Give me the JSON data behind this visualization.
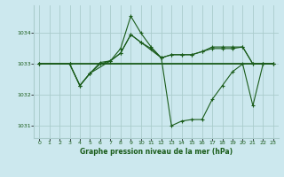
{
  "bg_color": "#cce8ee",
  "grid_color": "#aacccc",
  "line_color": "#1a5c1a",
  "title": "Graphe pression niveau de la mer (hPa)",
  "xlim": [
    -0.5,
    23.5
  ],
  "ylim": [
    1030.6,
    1034.9
  ],
  "yticks": [
    1031,
    1032,
    1033,
    1034
  ],
  "xticks": [
    0,
    1,
    2,
    3,
    4,
    5,
    6,
    7,
    8,
    9,
    10,
    11,
    12,
    13,
    14,
    15,
    16,
    17,
    18,
    19,
    20,
    21,
    22,
    23
  ],
  "series_flat": {
    "x": [
      0,
      23
    ],
    "y": [
      1033.0,
      1033.0
    ]
  },
  "series_slow": {
    "x": [
      0,
      3,
      4,
      5,
      6,
      7,
      8,
      9,
      10,
      12,
      13,
      14,
      15,
      16,
      17,
      18,
      19,
      20,
      21,
      22,
      23
    ],
    "y": [
      1033.0,
      1033.0,
      1032.3,
      1032.7,
      1033.0,
      1033.1,
      1033.35,
      1033.95,
      1033.7,
      1033.2,
      1033.3,
      1033.3,
      1033.3,
      1033.4,
      1033.5,
      1033.5,
      1033.5,
      1033.55,
      1033.0,
      1033.0,
      1033.0
    ]
  },
  "series_main": {
    "x": [
      0,
      3,
      4,
      5,
      6,
      7,
      8,
      9,
      10,
      11,
      12,
      13,
      14,
      15,
      16,
      17,
      18,
      19,
      20,
      21,
      22,
      23
    ],
    "y": [
      1033.0,
      1033.0,
      1032.3,
      1032.7,
      1033.05,
      1033.1,
      1033.5,
      1034.55,
      1034.0,
      1033.55,
      1033.2,
      1031.0,
      1031.15,
      1031.2,
      1031.2,
      1031.85,
      1032.3,
      1032.75,
      1033.0,
      1031.65,
      1033.0,
      1033.0
    ]
  },
  "series_rise": {
    "x": [
      0,
      3,
      4,
      5,
      7,
      8,
      9,
      10,
      11,
      12,
      13,
      14,
      15,
      16,
      17,
      18,
      19,
      20,
      21,
      22,
      23
    ],
    "y": [
      1033.0,
      1033.0,
      1032.3,
      1032.7,
      1033.1,
      1033.35,
      1033.95,
      1033.7,
      1033.5,
      1033.2,
      1033.3,
      1033.3,
      1033.3,
      1033.4,
      1033.55,
      1033.55,
      1033.55,
      1033.55,
      1033.0,
      1033.0,
      1033.0
    ]
  }
}
